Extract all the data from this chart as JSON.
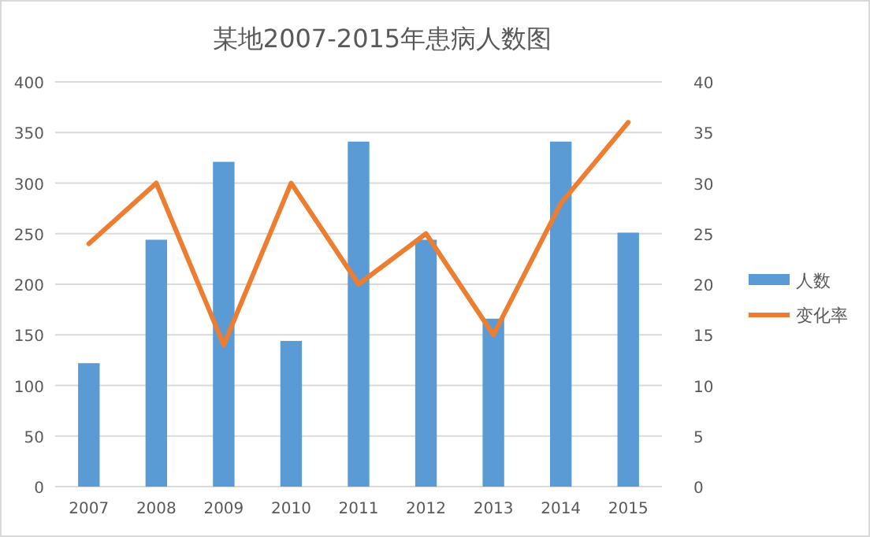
{
  "chart_data": {
    "type": "bar",
    "title": "某地2007-2015年患病人数图",
    "categories": [
      "2007",
      "2008",
      "2009",
      "2010",
      "2011",
      "2012",
      "2013",
      "2014",
      "2015"
    ],
    "series": [
      {
        "name": "人数",
        "color": "#5b9bd5",
        "values": [
          122,
          244,
          321,
          144,
          341,
          244,
          166,
          341,
          251
        ]
      },
      {
        "name": "变化率",
        "color": "#ed7d31",
        "type": "line",
        "axis": "y2",
        "values": [
          24,
          30,
          14,
          30,
          20,
          25,
          15,
          28,
          36
        ]
      }
    ],
    "ylim": [
      0,
      400
    ],
    "yticks": [
      0,
      50,
      100,
      150,
      200,
      250,
      300,
      350,
      400
    ],
    "y2lim": [
      0,
      40
    ],
    "y2ticks": [
      0,
      5,
      10,
      15,
      20,
      25,
      30,
      35,
      40
    ],
    "grid": "y",
    "legend": "right",
    "marker": "none",
    "line_style": "solid"
  }
}
